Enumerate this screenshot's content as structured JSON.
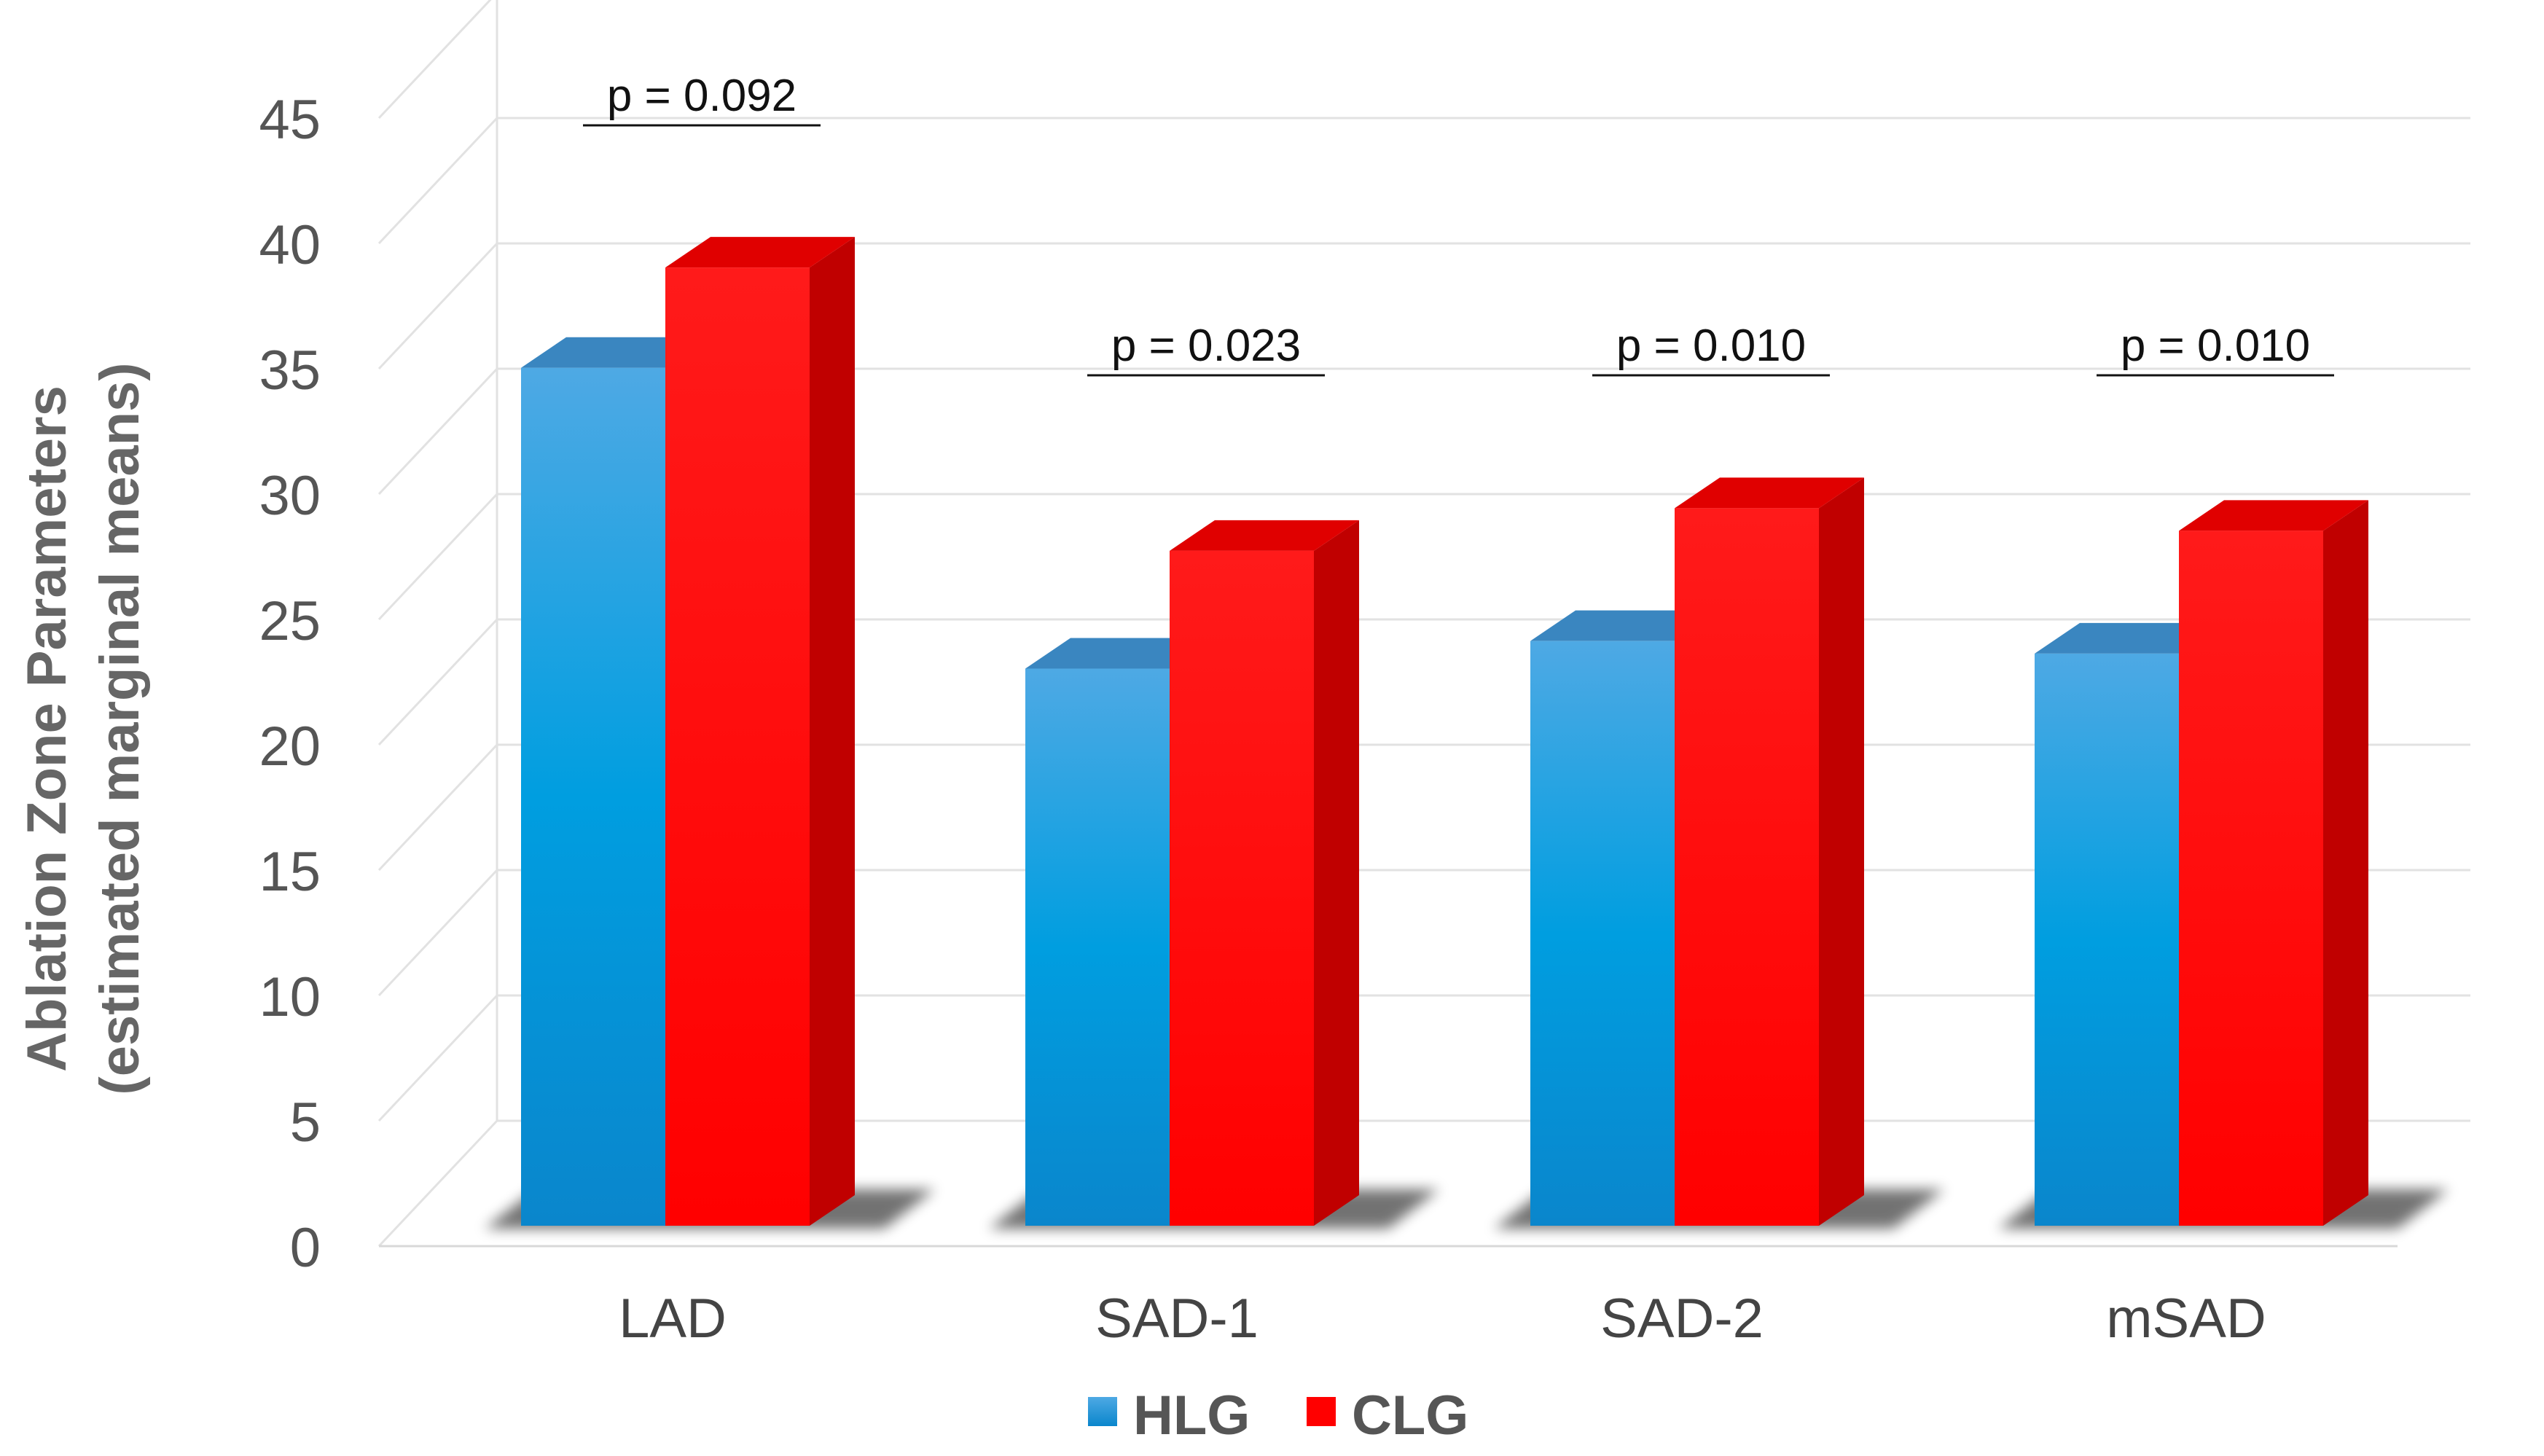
{
  "chart_data": {
    "type": "bar",
    "title": "",
    "xlabel": "",
    "ylabel_line1": "Ablation Zone Parameters",
    "ylabel_line2": "(estimated marginal means)",
    "categories": [
      "LAD",
      "SAD-1",
      "SAD-2",
      "mSAD"
    ],
    "series": [
      {
        "name": "HLG",
        "color": "#1a9be0",
        "values": [
          36.2,
          24.2,
          25.3,
          24.8
        ]
      },
      {
        "name": "CLG",
        "color": "#ff0000",
        "values": [
          40.2,
          28.9,
          30.6,
          29.7
        ]
      }
    ],
    "ylim": [
      0,
      45
    ],
    "yticks": [
      0,
      5,
      10,
      15,
      20,
      25,
      30,
      35,
      40,
      45
    ],
    "grid": true,
    "style": "3d-bar",
    "legend_position": "bottom-center",
    "annotations": [
      "p = 0.092",
      "p = 0.023",
      "p = 0.010",
      "p = 0.010"
    ]
  }
}
